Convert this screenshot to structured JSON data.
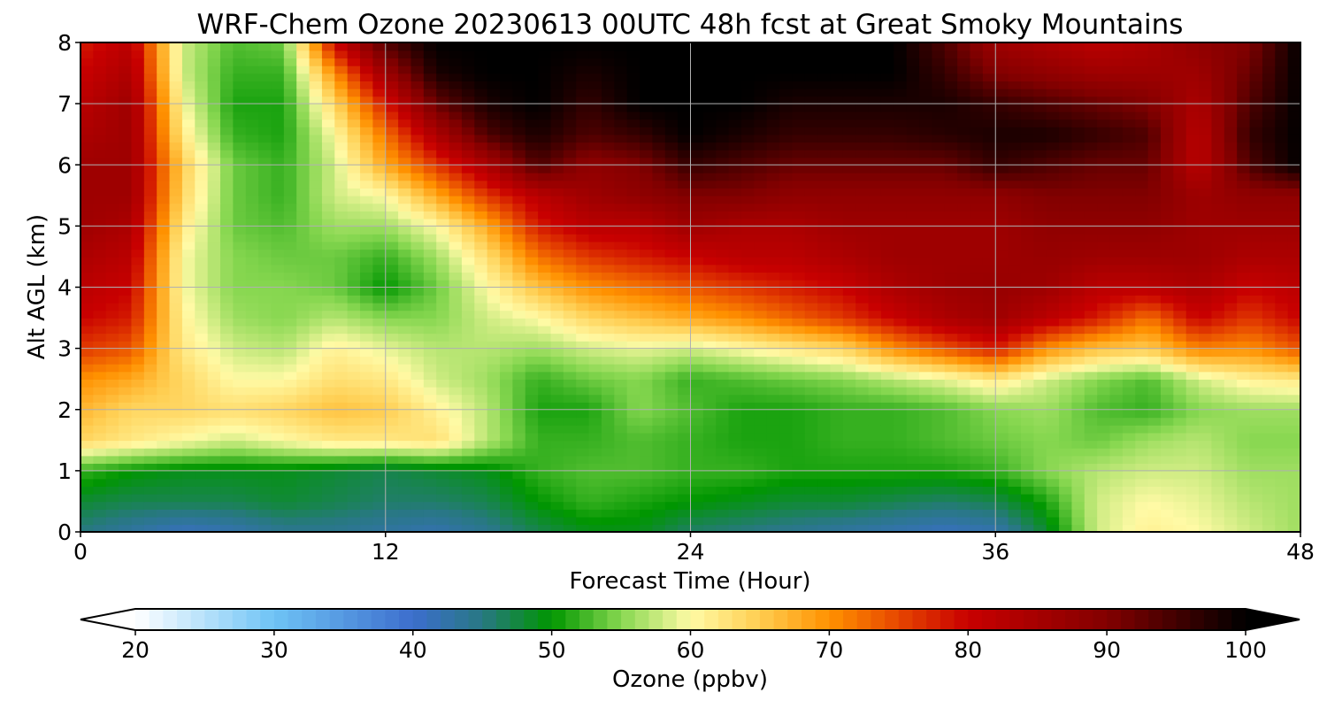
{
  "chart_data": {
    "type": "heatmap",
    "title": "WRF-Chem Ozone  20230613 00UTC 48h fcst at Great Smoky Mountains",
    "xlabel": "Forecast Time (Hour)",
    "ylabel": "Alt AGL (km)",
    "xlim": [
      0,
      48
    ],
    "ylim": [
      0,
      8
    ],
    "x_ticks": [
      0,
      12,
      24,
      36,
      48
    ],
    "y_ticks": [
      0,
      1,
      2,
      3,
      4,
      5,
      6,
      7,
      8
    ],
    "grid": true,
    "x": [
      0,
      2,
      4,
      6,
      8,
      10,
      12,
      14,
      16,
      18,
      20,
      22,
      24,
      26,
      28,
      30,
      32,
      34,
      36,
      38,
      40,
      42,
      44,
      46,
      48
    ],
    "y": [
      0,
      0.5,
      1,
      1.5,
      2,
      2.5,
      3,
      3.5,
      4,
      4.5,
      5,
      5.5,
      6,
      6.5,
      7,
      7.5,
      8
    ],
    "z": [
      [
        45,
        43,
        41,
        42,
        44,
        44,
        43,
        42,
        44,
        47,
        49,
        49,
        46,
        45,
        44,
        43,
        42,
        41,
        42,
        48,
        58,
        61,
        60,
        58,
        56
      ],
      [
        48,
        47,
        47,
        47,
        48,
        47,
        46,
        46,
        47,
        50,
        52,
        51,
        50,
        49,
        48,
        48,
        47,
        46,
        47,
        51,
        58,
        60,
        59,
        57,
        56
      ],
      [
        52,
        50,
        49,
        49,
        49,
        48,
        47,
        48,
        49,
        52,
        53,
        53,
        52,
        52,
        51,
        51,
        51,
        51,
        52,
        55,
        57,
        58,
        58,
        56,
        56
      ],
      [
        64,
        62,
        60,
        58,
        60,
        62,
        62,
        63,
        57,
        52,
        52,
        53,
        52,
        51,
        51,
        52,
        52,
        53,
        54,
        55,
        54,
        56,
        57,
        55,
        55
      ],
      [
        67,
        64,
        64,
        63,
        64,
        66,
        65,
        61,
        57,
        51,
        51,
        55,
        53,
        51,
        51,
        52,
        52,
        53,
        55,
        56,
        53,
        52,
        55,
        56,
        56
      ],
      [
        70,
        68,
        64,
        60,
        60,
        63,
        62,
        58,
        56,
        52,
        54,
        55,
        52,
        53,
        54,
        55,
        57,
        59,
        62,
        58,
        55,
        53,
        58,
        61,
        62
      ],
      [
        76,
        74,
        62,
        58,
        57,
        61,
        59,
        57,
        57,
        56,
        58,
        59,
        58,
        60,
        62,
        64,
        70,
        74,
        78,
        70,
        66,
        65,
        71,
        70,
        74
      ],
      [
        80,
        78,
        61,
        56,
        55,
        57,
        55,
        55,
        58,
        60,
        64,
        66,
        68,
        70,
        73,
        76,
        80,
        84,
        86,
        82,
        78,
        72,
        80,
        76,
        80
      ],
      [
        82,
        80,
        60,
        55,
        55,
        54,
        50,
        54,
        60,
        66,
        70,
        72,
        74,
        76,
        78,
        80,
        84,
        86,
        87,
        86,
        82,
        82,
        84,
        80,
        82
      ],
      [
        84,
        82,
        60,
        55,
        54,
        54,
        52,
        56,
        63,
        72,
        76,
        78,
        80,
        82,
        82,
        84,
        86,
        86,
        86,
        87,
        86,
        86,
        86,
        84,
        84
      ],
      [
        86,
        84,
        62,
        54,
        53,
        56,
        56,
        60,
        68,
        78,
        82,
        82,
        86,
        84,
        84,
        86,
        86,
        86,
        86,
        88,
        88,
        88,
        86,
        86,
        86
      ],
      [
        86,
        86,
        64,
        54,
        52,
        58,
        60,
        68,
        76,
        82,
        86,
        88,
        90,
        90,
        88,
        88,
        88,
        88,
        88,
        90,
        90,
        90,
        86,
        88,
        88
      ],
      [
        86,
        86,
        65,
        54,
        52,
        58,
        68,
        76,
        84,
        94,
        88,
        90,
        96,
        94,
        92,
        92,
        92,
        92,
        96,
        94,
        92,
        92,
        82,
        94,
        100
      ],
      [
        84,
        86,
        62,
        52,
        51,
        60,
        72,
        84,
        94,
        98,
        94,
        96,
        100,
        98,
        96,
        96,
        96,
        97,
        98,
        98,
        96,
        94,
        82,
        96,
        100
      ],
      [
        82,
        86,
        60,
        51,
        51,
        64,
        78,
        92,
        98,
        100,
        96,
        100,
        100,
        100,
        98,
        98,
        98,
        98,
        96,
        94,
        92,
        90,
        84,
        94,
        100
      ],
      [
        80,
        84,
        58,
        52,
        52,
        70,
        86,
        98,
        100,
        100,
        98,
        100,
        100,
        100,
        100,
        100,
        100,
        96,
        90,
        88,
        86,
        86,
        86,
        92,
        100
      ],
      [
        78,
        82,
        58,
        53,
        54,
        80,
        94,
        100,
        100,
        100,
        100,
        100,
        100,
        100,
        100,
        100,
        100,
        94,
        86,
        84,
        82,
        84,
        88,
        90,
        100
      ]
    ],
    "colorbar": {
      "label": "Ozone  (ppbv)",
      "ticks": [
        20,
        30,
        40,
        50,
        60,
        70,
        80,
        90,
        100
      ],
      "range": [
        20,
        100
      ],
      "extend": "both"
    }
  }
}
